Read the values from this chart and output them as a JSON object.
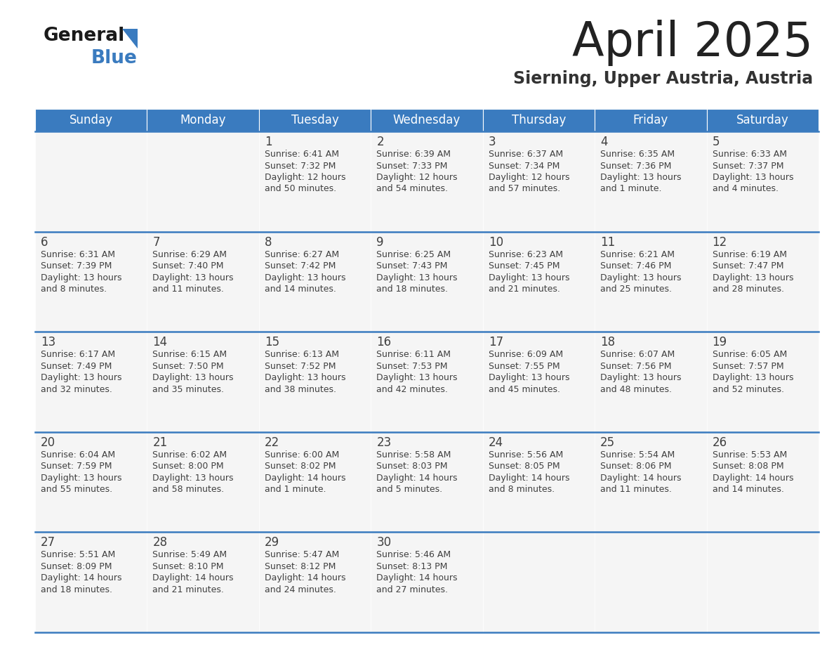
{
  "title": "April 2025",
  "subtitle": "Sierning, Upper Austria, Austria",
  "header_bg": "#3a7bbf",
  "header_text_color": "#ffffff",
  "cell_bg_odd": "#ebebeb",
  "cell_bg_even": "#f5f5f5",
  "border_color": "#3a7bbf",
  "text_color": "#404040",
  "days_of_week": [
    "Sunday",
    "Monday",
    "Tuesday",
    "Wednesday",
    "Thursday",
    "Friday",
    "Saturday"
  ],
  "weeks": [
    [
      {
        "day": "",
        "sunrise": "",
        "sunset": "",
        "daylight": ""
      },
      {
        "day": "",
        "sunrise": "",
        "sunset": "",
        "daylight": ""
      },
      {
        "day": "1",
        "sunrise": "Sunrise: 6:41 AM",
        "sunset": "Sunset: 7:32 PM",
        "daylight": "Daylight: 12 hours\nand 50 minutes."
      },
      {
        "day": "2",
        "sunrise": "Sunrise: 6:39 AM",
        "sunset": "Sunset: 7:33 PM",
        "daylight": "Daylight: 12 hours\nand 54 minutes."
      },
      {
        "day": "3",
        "sunrise": "Sunrise: 6:37 AM",
        "sunset": "Sunset: 7:34 PM",
        "daylight": "Daylight: 12 hours\nand 57 minutes."
      },
      {
        "day": "4",
        "sunrise": "Sunrise: 6:35 AM",
        "sunset": "Sunset: 7:36 PM",
        "daylight": "Daylight: 13 hours\nand 1 minute."
      },
      {
        "day": "5",
        "sunrise": "Sunrise: 6:33 AM",
        "sunset": "Sunset: 7:37 PM",
        "daylight": "Daylight: 13 hours\nand 4 minutes."
      }
    ],
    [
      {
        "day": "6",
        "sunrise": "Sunrise: 6:31 AM",
        "sunset": "Sunset: 7:39 PM",
        "daylight": "Daylight: 13 hours\nand 8 minutes."
      },
      {
        "day": "7",
        "sunrise": "Sunrise: 6:29 AM",
        "sunset": "Sunset: 7:40 PM",
        "daylight": "Daylight: 13 hours\nand 11 minutes."
      },
      {
        "day": "8",
        "sunrise": "Sunrise: 6:27 AM",
        "sunset": "Sunset: 7:42 PM",
        "daylight": "Daylight: 13 hours\nand 14 minutes."
      },
      {
        "day": "9",
        "sunrise": "Sunrise: 6:25 AM",
        "sunset": "Sunset: 7:43 PM",
        "daylight": "Daylight: 13 hours\nand 18 minutes."
      },
      {
        "day": "10",
        "sunrise": "Sunrise: 6:23 AM",
        "sunset": "Sunset: 7:45 PM",
        "daylight": "Daylight: 13 hours\nand 21 minutes."
      },
      {
        "day": "11",
        "sunrise": "Sunrise: 6:21 AM",
        "sunset": "Sunset: 7:46 PM",
        "daylight": "Daylight: 13 hours\nand 25 minutes."
      },
      {
        "day": "12",
        "sunrise": "Sunrise: 6:19 AM",
        "sunset": "Sunset: 7:47 PM",
        "daylight": "Daylight: 13 hours\nand 28 minutes."
      }
    ],
    [
      {
        "day": "13",
        "sunrise": "Sunrise: 6:17 AM",
        "sunset": "Sunset: 7:49 PM",
        "daylight": "Daylight: 13 hours\nand 32 minutes."
      },
      {
        "day": "14",
        "sunrise": "Sunrise: 6:15 AM",
        "sunset": "Sunset: 7:50 PM",
        "daylight": "Daylight: 13 hours\nand 35 minutes."
      },
      {
        "day": "15",
        "sunrise": "Sunrise: 6:13 AM",
        "sunset": "Sunset: 7:52 PM",
        "daylight": "Daylight: 13 hours\nand 38 minutes."
      },
      {
        "day": "16",
        "sunrise": "Sunrise: 6:11 AM",
        "sunset": "Sunset: 7:53 PM",
        "daylight": "Daylight: 13 hours\nand 42 minutes."
      },
      {
        "day": "17",
        "sunrise": "Sunrise: 6:09 AM",
        "sunset": "Sunset: 7:55 PM",
        "daylight": "Daylight: 13 hours\nand 45 minutes."
      },
      {
        "day": "18",
        "sunrise": "Sunrise: 6:07 AM",
        "sunset": "Sunset: 7:56 PM",
        "daylight": "Daylight: 13 hours\nand 48 minutes."
      },
      {
        "day": "19",
        "sunrise": "Sunrise: 6:05 AM",
        "sunset": "Sunset: 7:57 PM",
        "daylight": "Daylight: 13 hours\nand 52 minutes."
      }
    ],
    [
      {
        "day": "20",
        "sunrise": "Sunrise: 6:04 AM",
        "sunset": "Sunset: 7:59 PM",
        "daylight": "Daylight: 13 hours\nand 55 minutes."
      },
      {
        "day": "21",
        "sunrise": "Sunrise: 6:02 AM",
        "sunset": "Sunset: 8:00 PM",
        "daylight": "Daylight: 13 hours\nand 58 minutes."
      },
      {
        "day": "22",
        "sunrise": "Sunrise: 6:00 AM",
        "sunset": "Sunset: 8:02 PM",
        "daylight": "Daylight: 14 hours\nand 1 minute."
      },
      {
        "day": "23",
        "sunrise": "Sunrise: 5:58 AM",
        "sunset": "Sunset: 8:03 PM",
        "daylight": "Daylight: 14 hours\nand 5 minutes."
      },
      {
        "day": "24",
        "sunrise": "Sunrise: 5:56 AM",
        "sunset": "Sunset: 8:05 PM",
        "daylight": "Daylight: 14 hours\nand 8 minutes."
      },
      {
        "day": "25",
        "sunrise": "Sunrise: 5:54 AM",
        "sunset": "Sunset: 8:06 PM",
        "daylight": "Daylight: 14 hours\nand 11 minutes."
      },
      {
        "day": "26",
        "sunrise": "Sunrise: 5:53 AM",
        "sunset": "Sunset: 8:08 PM",
        "daylight": "Daylight: 14 hours\nand 14 minutes."
      }
    ],
    [
      {
        "day": "27",
        "sunrise": "Sunrise: 5:51 AM",
        "sunset": "Sunset: 8:09 PM",
        "daylight": "Daylight: 14 hours\nand 18 minutes."
      },
      {
        "day": "28",
        "sunrise": "Sunrise: 5:49 AM",
        "sunset": "Sunset: 8:10 PM",
        "daylight": "Daylight: 14 hours\nand 21 minutes."
      },
      {
        "day": "29",
        "sunrise": "Sunrise: 5:47 AM",
        "sunset": "Sunset: 8:12 PM",
        "daylight": "Daylight: 14 hours\nand 24 minutes."
      },
      {
        "day": "30",
        "sunrise": "Sunrise: 5:46 AM",
        "sunset": "Sunset: 8:13 PM",
        "daylight": "Daylight: 14 hours\nand 27 minutes."
      },
      {
        "day": "",
        "sunrise": "",
        "sunset": "",
        "daylight": ""
      },
      {
        "day": "",
        "sunrise": "",
        "sunset": "",
        "daylight": ""
      },
      {
        "day": "",
        "sunrise": "",
        "sunset": "",
        "daylight": ""
      }
    ]
  ]
}
